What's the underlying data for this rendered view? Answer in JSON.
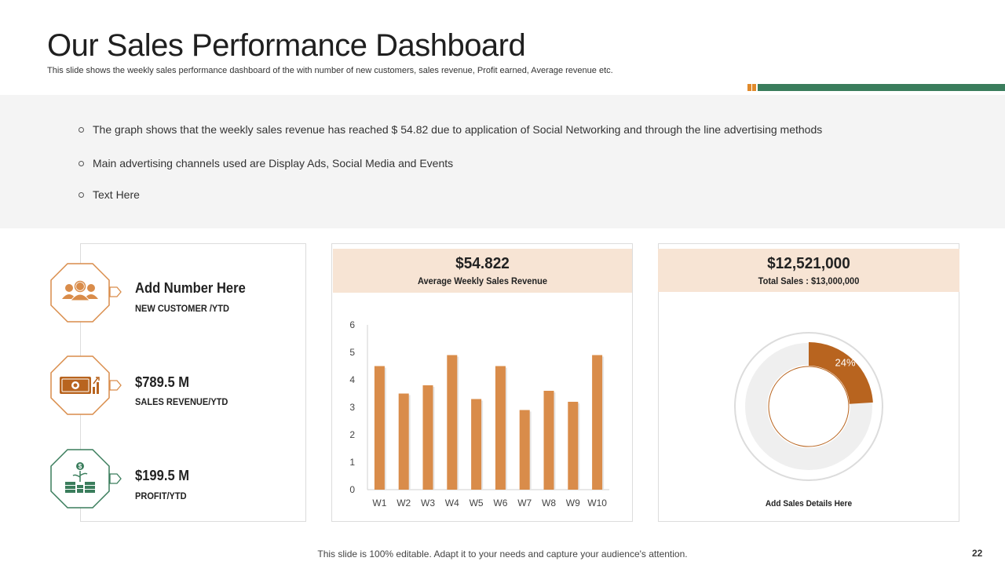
{
  "header": {
    "title": "Our Sales Performance Dashboard",
    "subtitle": "This slide shows the weekly sales performance dashboard of the with number of new customers, sales revenue, Profit earned, Average revenue etc."
  },
  "bullets": [
    "The graph shows that the weekly sales revenue has reached $ 54.82 due to application of Social Networking and through the line advertising methods",
    "Main advertising channels used are Display Ads, Social Media and Events",
    "Text Here"
  ],
  "metrics": [
    {
      "value": "Add Number Here",
      "label": "NEW CUSTOMER /YTD",
      "icon": "customers-icon"
    },
    {
      "value": "$789.5 M",
      "label": "SALES REVENUE/YTD",
      "icon": "revenue-icon"
    },
    {
      "value": "$199.5 M",
      "label": "PROFIT/YTD",
      "icon": "profit-icon"
    }
  ],
  "weekly_card": {
    "value": "$54.822",
    "label": "Average Weekly Sales Revenue"
  },
  "total_card": {
    "value": "$12,521,000",
    "label": "Total Sales : $13,000,000",
    "caption": "Add Sales Details Here",
    "percent_label": "24%"
  },
  "footer": {
    "text": "This slide is 100% editable. Adapt it to your needs and capture your audience's attention.",
    "page_number": "22"
  },
  "colors": {
    "orange": "#d98c4a",
    "dark_orange": "#b8641f",
    "green": "#3a7d5c",
    "panel_head": "#f7e4d4"
  },
  "chart_data": [
    {
      "type": "bar",
      "title": "Average Weekly Sales Revenue",
      "categories": [
        "W1",
        "W2",
        "W3",
        "W4",
        "W5",
        "W6",
        "W7",
        "W8",
        "W9",
        "W10"
      ],
      "values": [
        4.5,
        3.5,
        3.8,
        4.9,
        3.3,
        4.5,
        2.9,
        3.6,
        3.2,
        4.9
      ],
      "ylim": [
        0,
        6
      ],
      "yticks": [
        "0",
        "1",
        "2",
        "3",
        "4",
        "5",
        "6"
      ],
      "xlabel": "",
      "ylabel": ""
    },
    {
      "type": "pie",
      "title": "Total Sales",
      "slices": [
        {
          "label": "24%",
          "value": 24
        },
        {
          "label": "",
          "value": 76
        }
      ]
    }
  ]
}
